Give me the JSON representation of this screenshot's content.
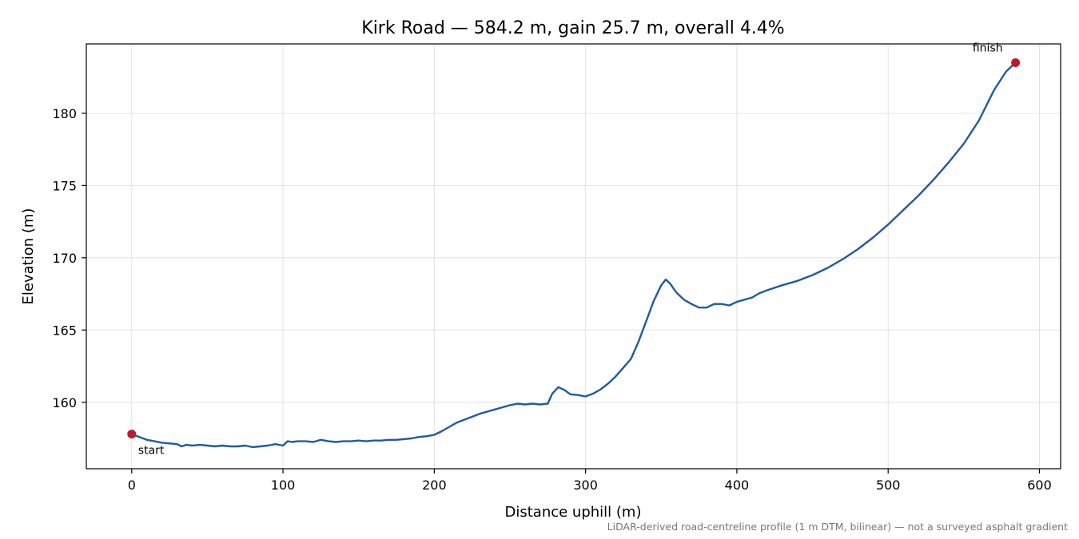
{
  "chart_data": {
    "type": "line",
    "title": "Kirk Road — 584.2 m, gain 25.7 m, overall 4.4%",
    "xlabel": "Distance uphill (m)",
    "ylabel": "Elevation (m)",
    "xlim": [
      -30,
      614
    ],
    "ylim": [
      155.4,
      184.8
    ],
    "xticks": [
      0,
      100,
      200,
      300,
      400,
      500,
      600
    ],
    "yticks": [
      160,
      165,
      170,
      175,
      180
    ],
    "grid": true,
    "footnote": "LiDAR-derived road-centreline profile (1 m DTM, bilinear) — not a surveyed asphalt gradient",
    "colors": {
      "line": "#1f5aa6",
      "marker": "#c0192a"
    },
    "series": [
      {
        "x": [
          0,
          5,
          10,
          15,
          20,
          25,
          30,
          33,
          36,
          40,
          45,
          50,
          55,
          60,
          65,
          70,
          75,
          80,
          85,
          90,
          95,
          100,
          103,
          106,
          110,
          115,
          120,
          125,
          130,
          135,
          140,
          145,
          150,
          155,
          160,
          165,
          170,
          175,
          180,
          185,
          190,
          195,
          200,
          205,
          210,
          215,
          220,
          225,
          230,
          235,
          240,
          245,
          250,
          255,
          260,
          265,
          270,
          275,
          278,
          282,
          286,
          290,
          295,
          300,
          305,
          310,
          315,
          320,
          325,
          330,
          335,
          340,
          345,
          350,
          353,
          356,
          360,
          365,
          370,
          375,
          380,
          385,
          390,
          395,
          400,
          405,
          410,
          415,
          420,
          430,
          440,
          450,
          460,
          470,
          480,
          490,
          500,
          510,
          520,
          530,
          540,
          550,
          560,
          570,
          578,
          584.2
        ],
        "y": [
          157.8,
          157.6,
          157.4,
          157.3,
          157.2,
          157.15,
          157.1,
          156.95,
          157.05,
          157.0,
          157.05,
          157.0,
          156.95,
          157.0,
          156.95,
          156.95,
          157.0,
          156.9,
          156.95,
          157.0,
          157.1,
          157.0,
          157.3,
          157.25,
          157.3,
          157.3,
          157.25,
          157.4,
          157.3,
          157.25,
          157.3,
          157.3,
          157.35,
          157.3,
          157.35,
          157.35,
          157.4,
          157.4,
          157.45,
          157.5,
          157.6,
          157.65,
          157.75,
          158.0,
          158.3,
          158.6,
          158.8,
          159.0,
          159.2,
          159.35,
          159.5,
          159.65,
          159.8,
          159.9,
          159.85,
          159.9,
          159.85,
          159.9,
          160.6,
          161.05,
          160.85,
          160.55,
          160.5,
          160.4,
          160.6,
          160.9,
          161.3,
          161.8,
          162.4,
          163.0,
          164.2,
          165.6,
          167.0,
          168.1,
          168.5,
          168.2,
          167.6,
          167.1,
          166.8,
          166.55,
          166.55,
          166.8,
          166.8,
          166.7,
          166.95,
          167.1,
          167.25,
          167.55,
          167.75,
          168.1,
          168.4,
          168.8,
          169.3,
          169.9,
          170.6,
          171.4,
          172.3,
          173.3,
          174.3,
          175.4,
          176.6,
          177.9,
          179.5,
          181.6,
          182.9,
          183.5
        ]
      }
    ],
    "annotations": [
      {
        "text": "start",
        "x": 0,
        "y": 157.8
      },
      {
        "text": "finish",
        "x": 584.2,
        "y": 183.5
      }
    ]
  }
}
